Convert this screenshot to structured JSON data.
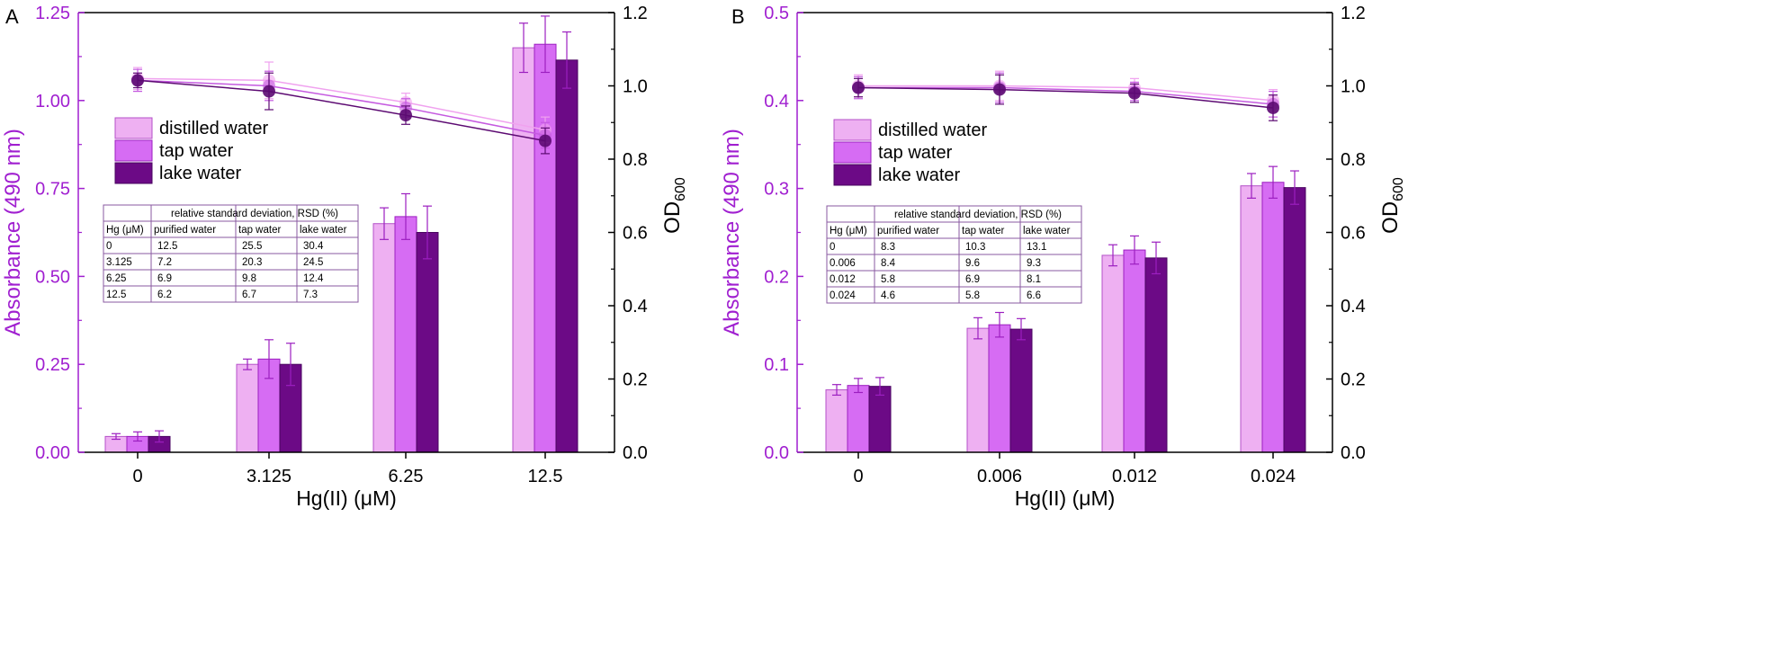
{
  "colors": {
    "axis_left": "#a01fd0",
    "axis_right": "#000000",
    "distilled": "#eeb0f2",
    "distilled_edge": "#b451c8",
    "tap": "#d66cf3",
    "tap_edge": "#9c1fc0",
    "lake": "#6c0a86",
    "lake_edge": "#4a0560",
    "line_distilled": "#f0a2ef",
    "line_tap": "#c55ae0",
    "line_lake": "#5c0a72",
    "table_border": "#8a5aa0"
  },
  "chart_data": [
    {
      "panel_label": "A",
      "type": "bar",
      "categories": [
        "0",
        "3.125",
        "6.25",
        "12.5"
      ],
      "xlabel": "Hg(II) (μM)",
      "ylabel": "Absorbance (490 nm)",
      "ylabel2": "OD",
      "ylabel2_sub": "600",
      "ylim": [
        0,
        1.25
      ],
      "yticks": [
        "0.00",
        "0.25",
        "0.50",
        "0.75",
        "1.00",
        "1.25"
      ],
      "y2lim": [
        0,
        1.2
      ],
      "y2ticks": [
        "0.0",
        "0.2",
        "0.4",
        "0.6",
        "0.8",
        "1.0",
        "1.2"
      ],
      "series": [
        {
          "name": "distilled water",
          "values": [
            0.045,
            0.25,
            0.65,
            1.15
          ],
          "errors": [
            0.008,
            0.015,
            0.045,
            0.07
          ]
        },
        {
          "name": "tap water",
          "values": [
            0.045,
            0.265,
            0.67,
            1.16
          ],
          "errors": [
            0.013,
            0.055,
            0.065,
            0.08
          ]
        },
        {
          "name": "lake water",
          "values": [
            0.045,
            0.25,
            0.625,
            1.115
          ],
          "errors": [
            0.016,
            0.06,
            0.075,
            0.08
          ]
        }
      ],
      "line_series": [
        {
          "name": "distilled water",
          "values": [
            1.02,
            1.015,
            0.955,
            0.88
          ],
          "errors": [
            0.03,
            0.05,
            0.025,
            0.035
          ]
        },
        {
          "name": "tap water",
          "values": [
            1.015,
            1.0,
            0.94,
            0.865
          ],
          "errors": [
            0.03,
            0.04,
            0.025,
            0.035
          ]
        },
        {
          "name": "lake water",
          "values": [
            1.015,
            0.985,
            0.92,
            0.85
          ],
          "errors": [
            0.02,
            0.05,
            0.025,
            0.035
          ]
        }
      ],
      "legend_placement": "upper-left",
      "table": {
        "header": "relative standard deviation, RSD (%)",
        "columns": [
          "Hg (μM)",
          "purified water",
          "tap water",
          "lake water"
        ],
        "rows": [
          [
            "0",
            "12.5",
            "25.5",
            "30.4"
          ],
          [
            "3.125",
            "7.2",
            "20.3",
            "24.5"
          ],
          [
            "6.25",
            "6.9",
            "9.8",
            "12.4"
          ],
          [
            "12.5",
            "6.2",
            "6.7",
            "7.3"
          ]
        ]
      }
    },
    {
      "panel_label": "B",
      "type": "bar",
      "categories": [
        "0",
        "0.006",
        "0.012",
        "0.024"
      ],
      "xlabel": "Hg(II) (μM)",
      "ylabel": "Absorbance (490 nm)",
      "ylabel2": "OD",
      "ylabel2_sub": "600",
      "ylim": [
        0,
        0.5
      ],
      "yticks": [
        "0.0",
        "0.1",
        "0.2",
        "0.3",
        "0.4",
        "0.5"
      ],
      "y2lim": [
        0,
        1.2
      ],
      "y2ticks": [
        "0.0",
        "0.2",
        "0.4",
        "0.6",
        "0.8",
        "1.0",
        "1.2"
      ],
      "series": [
        {
          "name": "distilled water",
          "values": [
            0.071,
            0.141,
            0.224,
            0.303
          ],
          "errors": [
            0.006,
            0.012,
            0.012,
            0.014
          ]
        },
        {
          "name": "tap water",
          "values": [
            0.076,
            0.145,
            0.23,
            0.307
          ],
          "errors": [
            0.008,
            0.014,
            0.016,
            0.018
          ]
        },
        {
          "name": "lake water",
          "values": [
            0.075,
            0.14,
            0.221,
            0.301
          ],
          "errors": [
            0.01,
            0.012,
            0.018,
            0.019
          ]
        }
      ],
      "line_series": [
        {
          "name": "distilled water",
          "values": [
            1.0,
            1.0,
            0.995,
            0.96
          ],
          "errors": [
            0.03,
            0.04,
            0.025,
            0.03
          ]
        },
        {
          "name": "tap water",
          "values": [
            0.995,
            0.995,
            0.985,
            0.95
          ],
          "errors": [
            0.03,
            0.04,
            0.025,
            0.035
          ]
        },
        {
          "name": "lake water",
          "values": [
            0.995,
            0.99,
            0.98,
            0.94
          ],
          "errors": [
            0.025,
            0.04,
            0.025,
            0.035
          ]
        }
      ],
      "legend_placement": "upper-left",
      "table": {
        "header": "relative standard deviation, RSD (%)",
        "columns": [
          "Hg (μM)",
          "purified water",
          "tap water",
          "lake water"
        ],
        "rows": [
          [
            "0",
            "8.3",
            "10.3",
            "13.1"
          ],
          [
            "0.006",
            "8.4",
            "9.6",
            "9.3"
          ],
          [
            "0.012",
            "5.8",
            "6.9",
            "8.1"
          ],
          [
            "0.024",
            "4.6",
            "5.8",
            "6.6"
          ]
        ]
      }
    }
  ]
}
